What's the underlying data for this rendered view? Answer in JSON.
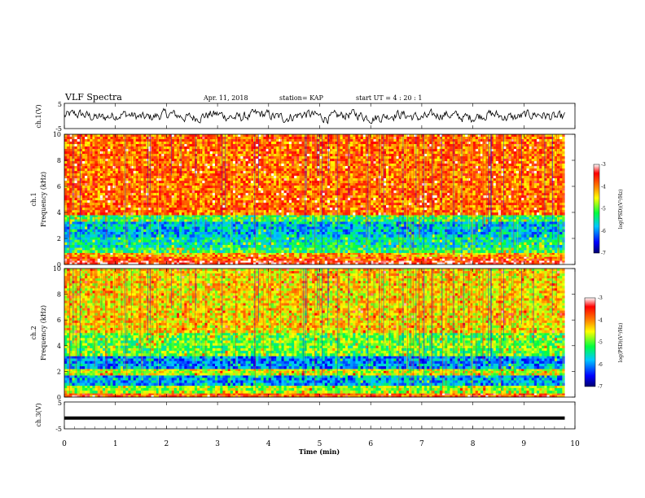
{
  "header": {
    "title": "VLF Spectra",
    "date": "Apr. 11, 2018",
    "station": "station= KAP",
    "start": "start  UT =  4 : 20 : 1"
  },
  "colorbar": {
    "label": "log(PSD)(V²/Hz)",
    "ticks": [
      "-3",
      "-4",
      "-5",
      "-6",
      "-7"
    ],
    "colors": [
      "#000070",
      "#0000ff",
      "#00c8ff",
      "#00ff40",
      "#ffff00",
      "#ff8000",
      "#ff0000",
      "#ffffff"
    ]
  },
  "chart_data": [
    {
      "type": "line",
      "panel": "ch1-waveform",
      "ylabel": "ch.1(V)",
      "ylim": [
        -5,
        5
      ],
      "yticks": [
        "5",
        "-5"
      ],
      "xlim": [
        0,
        10
      ],
      "description_values": {
        "x": [
          0,
          0.5,
          1,
          1.5,
          2,
          2.5,
          3,
          3.5,
          4,
          4.5,
          5,
          5.5,
          6,
          6.5,
          7,
          7.5,
          8,
          8.5,
          9,
          9.5,
          9.8
        ],
        "y": [
          0.5,
          -0.5,
          1.2,
          -1.0,
          0.8,
          -0.3,
          1.5,
          -1.2,
          0.6,
          -0.8,
          1.0,
          -0.2,
          0.9,
          -1.1,
          1.3,
          -0.6,
          0.7,
          -0.9,
          1.1,
          -0.4,
          0.3
        ]
      }
    },
    {
      "type": "heatmap",
      "panel": "ch1-spectrogram",
      "ylabel": "ch.1\nFrequency (kHz)",
      "ylim": [
        0,
        10
      ],
      "yticks": [
        "0",
        "2",
        "4",
        "6",
        "8",
        "10"
      ],
      "xlim": [
        0,
        10
      ],
      "zlim": [
        -7,
        -3
      ],
      "zlabel": "log(PSD)(V²/Hz)",
      "bands": [
        {
          "f": [
            0,
            0.3
          ],
          "level": -3.4
        },
        {
          "f": [
            0.3,
            0.6
          ],
          "level": -3.8
        },
        {
          "f": [
            0.6,
            0.9
          ],
          "level": -4.2
        },
        {
          "f": [
            0.9,
            1.3
          ],
          "level": -5.2
        },
        {
          "f": [
            1.3,
            2.1
          ],
          "level": -5.5
        },
        {
          "f": [
            2.1,
            3.3
          ],
          "level": -5.8
        },
        {
          "f": [
            3.3,
            3.8
          ],
          "level": -5.2
        },
        {
          "f": [
            3.8,
            10
          ],
          "level": -3.9
        }
      ]
    },
    {
      "type": "heatmap",
      "panel": "ch2-spectrogram",
      "ylabel": "ch.2\nFrequency (kHz)",
      "ylim": [
        0,
        10
      ],
      "yticks": [
        "0",
        "2",
        "4",
        "6",
        "8",
        "10"
      ],
      "xlim": [
        0,
        10
      ],
      "zlim": [
        -7,
        -3
      ],
      "zlabel": "log(PSD)(V²/Hz)",
      "bands": [
        {
          "f": [
            0,
            0.3
          ],
          "level": -3.8
        },
        {
          "f": [
            0.3,
            0.9
          ],
          "level": -4.8
        },
        {
          "f": [
            0.9,
            1.7
          ],
          "level": -5.9
        },
        {
          "f": [
            1.7,
            2.2
          ],
          "level": -4.6
        },
        {
          "f": [
            2.2,
            3.2
          ],
          "level": -6.0
        },
        {
          "f": [
            3.2,
            5.0
          ],
          "level": -5.0
        },
        {
          "f": [
            5.0,
            10
          ],
          "level": -4.4
        }
      ]
    },
    {
      "type": "line",
      "panel": "ch3-waveform",
      "ylabel": "ch.3(V)",
      "ylim": [
        -5,
        5
      ],
      "yticks": [
        "5",
        "-5"
      ],
      "xlim": [
        0,
        10
      ],
      "xlabel": "Time (min)",
      "xticks": [
        "0",
        "1",
        "2",
        "3",
        "4",
        "5",
        "6",
        "7",
        "8",
        "9",
        "10"
      ],
      "x": [
        0,
        9.8
      ],
      "y": [
        -2,
        -2
      ]
    }
  ]
}
